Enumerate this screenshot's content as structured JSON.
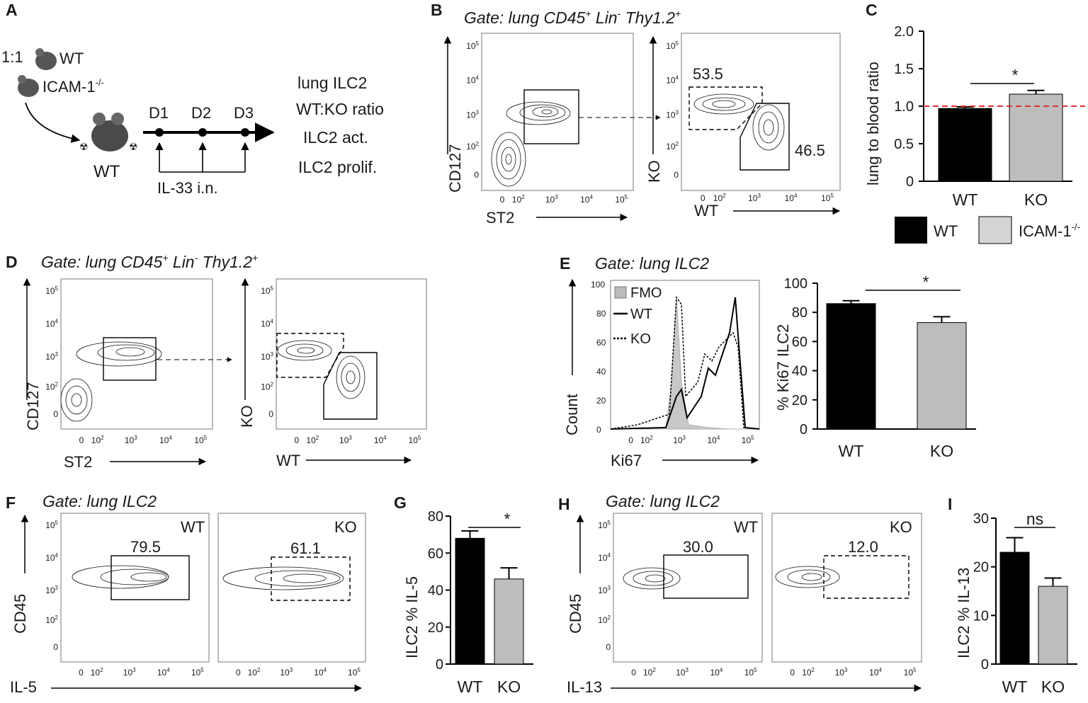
{
  "colors": {
    "wt": "#000000",
    "ko": "#bdbdbd",
    "ref_line": "#e03030",
    "fmo": "#c8c8c8"
  },
  "panel_labels": [
    "A",
    "B",
    "C",
    "D",
    "E",
    "F",
    "G",
    "H",
    "I"
  ],
  "panel_a": {
    "ratio": "1:1",
    "donor_wt": "WT",
    "donor_ko": "ICAM-1",
    "donor_ko_sup": "-/-",
    "recipient": "WT",
    "days": [
      "D1",
      "D2",
      "D3"
    ],
    "treatment": "IL-33 i.n.",
    "readouts": [
      "lung ILC2",
      "WT:KO ratio",
      "ILC2 act.",
      "ILC2 prolif."
    ]
  },
  "panel_b": {
    "gate": "Gate: lung CD45",
    "gate_parts": [
      "+",
      " Lin",
      "-",
      " Thy1.2",
      "+"
    ],
    "y_label": "CD127",
    "x_label": "ST2",
    "y2_label": "KO",
    "x2_label": "WT",
    "gate_ko_pct": "53.5",
    "gate_wt_pct": "46.5"
  },
  "panel_d": {
    "gate": "Gate: lung CD45",
    "gate_parts": [
      "+",
      " Lin",
      "-",
      " Thy1.2",
      "+"
    ],
    "y_label": "CD127",
    "x_label": "ST2",
    "y2_label": "KO",
    "x2_label": "WT"
  },
  "panel_e": {
    "gate": "Gate: lung ILC2",
    "y_label": "Count",
    "x_label": "Ki67",
    "legend": [
      "FMO",
      "WT",
      "KO"
    ],
    "y_ticks": [
      "0",
      "20",
      "40",
      "60",
      "80",
      "100"
    ]
  },
  "panel_f": {
    "gate": "Gate: lung ILC2",
    "y_label": "CD45",
    "x_label": "IL-5",
    "wt_tag": "WT",
    "ko_tag": "KO",
    "wt_pct": "79.5",
    "ko_pct": "61.1"
  },
  "panel_h": {
    "gate": "Gate: lung ILC2",
    "y_label": "CD45",
    "x_label": "IL-13",
    "wt_tag": "WT",
    "ko_tag": "KO",
    "wt_pct": "30.0",
    "ko_pct": "12.0"
  },
  "flow_ticks": {
    "x": [
      "0",
      "10",
      "2",
      "10",
      "3",
      "10",
      "4",
      "10",
      "5"
    ],
    "y": [
      "10",
      "5",
      "10",
      "4",
      "10",
      "3",
      "10",
      "2",
      "0"
    ]
  },
  "legend_c": {
    "wt": "WT",
    "ko": "ICAM-1",
    "ko_sup": "-/-"
  },
  "chart_data": [
    {
      "panel": "C",
      "type": "bar",
      "categories": [
        "WT",
        "KO"
      ],
      "values": [
        0.97,
        1.16
      ],
      "errors": [
        0.02,
        0.05
      ],
      "ylabel": "lung to blood ratio",
      "ylim": [
        0,
        2.0
      ],
      "y_ticks": [
        "0",
        "0.5",
        "1.0",
        "1.5",
        "2.0"
      ],
      "reference_line": 1.0,
      "significance": "*"
    },
    {
      "panel": "E",
      "type": "bar",
      "categories": [
        "WT",
        "KO"
      ],
      "values": [
        86,
        73
      ],
      "errors": [
        2,
        4
      ],
      "ylabel": "% Ki67 ILC2",
      "ylim": [
        0,
        100
      ],
      "y_ticks": [
        "0",
        "20",
        "40",
        "60",
        "80",
        "100"
      ],
      "significance": "*"
    },
    {
      "panel": "G",
      "type": "bar",
      "categories": [
        "WT",
        "KO"
      ],
      "values": [
        68,
        46
      ],
      "errors": [
        4,
        6
      ],
      "ylabel": "ILC2 % IL-5",
      "ylim": [
        0,
        80
      ],
      "y_ticks": [
        "0",
        "20",
        "40",
        "60",
        "80"
      ],
      "significance": "*"
    },
    {
      "panel": "I",
      "type": "bar",
      "categories": [
        "WT",
        "KO"
      ],
      "values": [
        23,
        16
      ],
      "errors": [
        3,
        1.7
      ],
      "ylabel": "ILC2 % IL-13",
      "ylim": [
        0,
        30
      ],
      "y_ticks": [
        "0",
        "10",
        "20",
        "30"
      ],
      "significance": "ns"
    }
  ]
}
